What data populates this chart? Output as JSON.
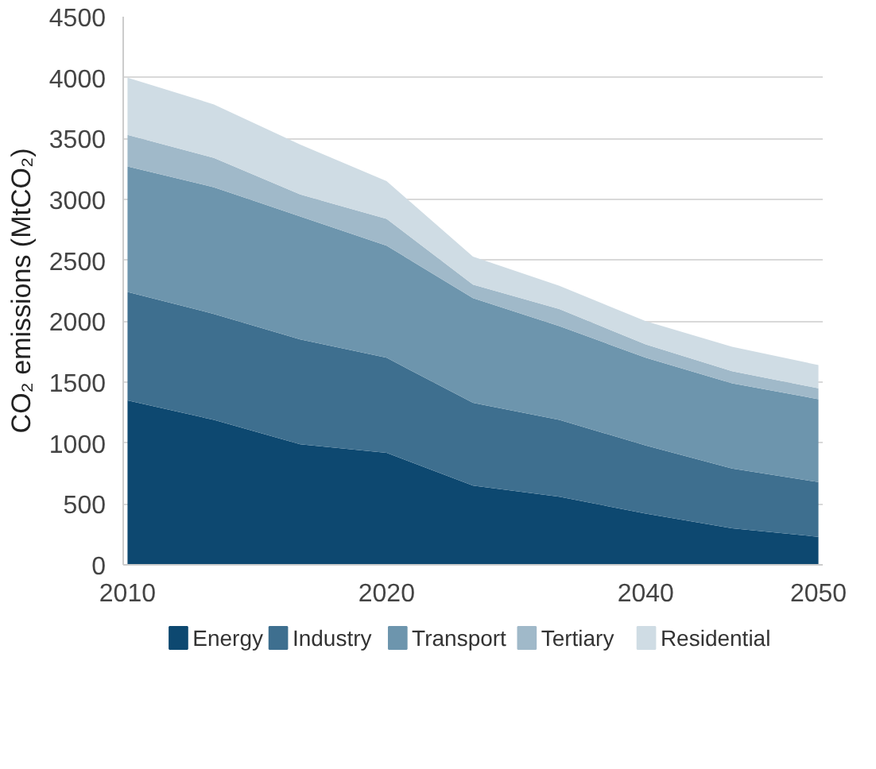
{
  "chart_data": {
    "type": "area",
    "stacked": true,
    "ylabel": "CO₂ emissions (MtCO₂)",
    "categories": [
      "2010",
      null,
      null,
      "2020",
      null,
      null,
      "2040",
      null,
      "2050"
    ],
    "series": [
      {
        "name": "Energy",
        "color": "#0d4870",
        "values": [
          1350,
          1190,
          990,
          920,
          650,
          560,
          420,
          300,
          230
        ]
      },
      {
        "name": "Industry",
        "color": "#3e6f8f",
        "values": [
          890,
          870,
          860,
          780,
          680,
          630,
          560,
          490,
          450
        ]
      },
      {
        "name": "Transport",
        "color": "#6d95ad",
        "values": [
          1030,
          1040,
          1010,
          920,
          860,
          770,
          720,
          700,
          680
        ]
      },
      {
        "name": "Tertiary",
        "color": "#a0b9c9",
        "values": [
          260,
          240,
          180,
          220,
          110,
          140,
          110,
          100,
          90
        ]
      },
      {
        "name": "Residential",
        "color": "#cfdce4",
        "values": [
          470,
          440,
          410,
          310,
          230,
          190,
          190,
          200,
          190
        ]
      }
    ],
    "ylim": [
      0,
      4500
    ],
    "yticks": [
      0,
      500,
      1000,
      1500,
      2000,
      2500,
      3000,
      3500,
      4000,
      4500
    ],
    "grid": "y",
    "legend": "bottom"
  }
}
